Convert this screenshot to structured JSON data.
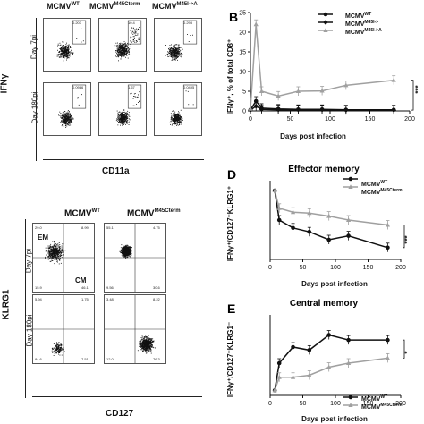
{
  "panelA": {
    "columns": [
      {
        "base": "MCMV",
        "sup": "WT"
      },
      {
        "base": "MCMV",
        "sup": "M45Cterm"
      },
      {
        "base": "MCMV",
        "sup": "M45I->A"
      }
    ],
    "rows": [
      "Day 7pi",
      "Day 180pi"
    ],
    "y_axis": "IFNγ",
    "x_axis": "CD11a",
    "gate_values": [
      [
        "0.203",
        "10.4",
        "0.298"
      ],
      [
        "0.0986",
        "1.67",
        "0.0495"
      ]
    ]
  },
  "panelC": {
    "columns": [
      {
        "base": "MCMV",
        "sup": "WT"
      },
      {
        "base": "MCMV",
        "sup": "M45Cterm"
      }
    ],
    "rows": [
      "Day 7pi",
      "Day 180pi"
    ],
    "y_axis": "KLRG1",
    "x_axis": "CD127",
    "em_label": "EM",
    "cm_label": "CM",
    "quadrants": [
      [
        [
          "29.0",
          "8.99",
          "15.9",
          "46.1"
        ],
        [
          "55.1",
          "4.75",
          "9.56",
          "30.6"
        ]
      ],
      [
        [
          "5.94",
          "1.75",
          "84.6",
          "7.51"
        ],
        [
          "3.48",
          "8.22",
          "12.0",
          "76.3"
        ]
      ]
    ]
  },
  "panelB": {
    "letter": "B",
    "sig": "***",
    "legend": [
      {
        "base": "MCMV",
        "sup": "WT"
      },
      {
        "base": "MCMV",
        "sup": "M45I->"
      },
      {
        "base": "MCMV",
        "sup": "M45I->A"
      }
    ]
  },
  "panelD": {
    "letter": "D",
    "title": "Effector memory",
    "sig": "***",
    "legend": [
      {
        "base": "MCMV",
        "sup": "WT"
      },
      {
        "base": "MCMV",
        "sup": "M45Cterm"
      }
    ]
  },
  "panelE": {
    "letter": "E",
    "title": "Central memory",
    "sig": "*",
    "legend": [
      {
        "base": "MCMV",
        "sup": "WT"
      },
      {
        "base": "MCMV",
        "sup": "M45Cterm"
      }
    ]
  },
  "chart_data": [
    {
      "type": "line",
      "panel": "B",
      "xlabel": "Days post infection",
      "ylabel": "IFNγ⁺, % of total CD8⁺",
      "xlim": [
        0,
        200
      ],
      "ylim": [
        0,
        25
      ],
      "xticks": [
        0,
        50,
        100,
        150,
        200
      ],
      "yticks": [
        0,
        5,
        10,
        15,
        20,
        25
      ],
      "series": [
        {
          "name": "MCMVWT",
          "color": "#111111",
          "marker": "circle",
          "x": [
            0,
            7,
            14,
            35,
            60,
            90,
            120,
            180
          ],
          "y": [
            0.3,
            2.5,
            0.7,
            0.5,
            0.4,
            0.4,
            0.3,
            0.3
          ]
        },
        {
          "name": "MCMVM45I->",
          "color": "#111111",
          "marker": "diamond",
          "x": [
            0,
            7,
            14,
            35,
            60,
            90,
            120,
            180
          ],
          "y": [
            0.2,
            1.2,
            0.4,
            0.3,
            0.3,
            0.3,
            0.2,
            0.2
          ]
        },
        {
          "name": "MCMVM45I->A",
          "color": "#a0a0a0",
          "marker": "triangle",
          "x": [
            0,
            7,
            14,
            35,
            60,
            90,
            120,
            180
          ],
          "y": [
            0.5,
            22.0,
            5.0,
            3.8,
            5.0,
            5.1,
            6.5,
            7.8
          ]
        }
      ]
    },
    {
      "type": "line",
      "panel": "D",
      "title": "Effector memory",
      "xlabel": "Days post infection",
      "ylabel": "IFNγ⁺/CD127⁻KLRG1⁺",
      "xlim": [
        0,
        200
      ],
      "ylim": [
        0,
        80
      ],
      "xticks": [
        0,
        50,
        100,
        150,
        200
      ],
      "xticklabels": [
        "0",
        "50",
        "100",
        "150",
        "200"
      ],
      "series": [
        {
          "name": "MCMVWT",
          "color": "#111111",
          "marker": "circle",
          "x": [
            7,
            14,
            35,
            60,
            90,
            120,
            180
          ],
          "y": [
            70,
            40,
            32,
            28,
            20,
            24,
            12
          ]
        },
        {
          "name": "MCMVM45Cterm",
          "color": "#a0a0a0",
          "marker": "triangle",
          "x": [
            7,
            14,
            35,
            60,
            90,
            120,
            180
          ],
          "y": [
            70,
            52,
            48,
            47,
            44,
            40,
            35
          ]
        }
      ]
    },
    {
      "type": "line",
      "panel": "E",
      "title": "Central memory",
      "xlabel": "Days post infection",
      "ylabel": "IFNγ⁺/CD127⁺KLRG1⁻",
      "xlim": [
        0,
        200
      ],
      "ylim": [
        0,
        80
      ],
      "xticks": [
        0,
        50,
        100,
        150,
        200
      ],
      "series": [
        {
          "name": "MCMVWT",
          "color": "#111111",
          "marker": "circle",
          "x": [
            7,
            14,
            35,
            60,
            90,
            120,
            180
          ],
          "y": [
            5,
            32,
            48,
            45,
            60,
            55,
            55
          ]
        },
        {
          "name": "MCMVM45Cterm",
          "color": "#a0a0a0",
          "marker": "triangle",
          "x": [
            7,
            14,
            35,
            60,
            90,
            120,
            180
          ],
          "y": [
            5,
            18,
            18,
            20,
            28,
            32,
            37
          ]
        }
      ]
    }
  ]
}
